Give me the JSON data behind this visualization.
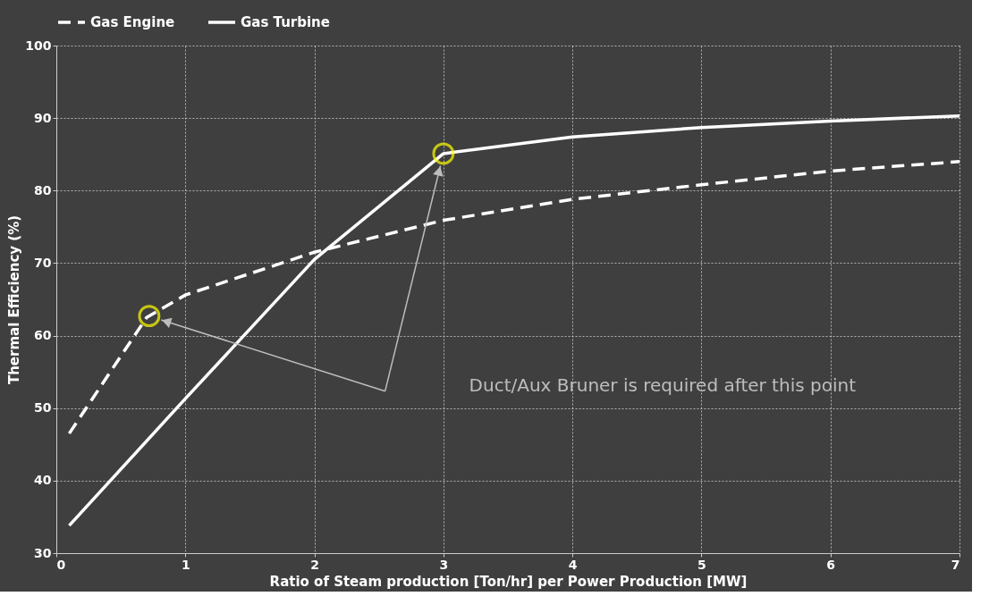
{
  "chart_data": {
    "type": "line",
    "xlabel": "Ratio of Steam production [Ton/hr] per Power Production [MW]",
    "ylabel": "Thermal Efficiency (%)",
    "xlim": [
      0,
      7
    ],
    "xticks": [
      0,
      1,
      2,
      3,
      4,
      5,
      6,
      7
    ],
    "ylim": [
      30,
      100
    ],
    "yticks": [
      30,
      40,
      50,
      60,
      70,
      80,
      90,
      100
    ],
    "grid": true,
    "legend": "top",
    "series": [
      {
        "name": "Gas Engine",
        "color": "#ffffff",
        "line_style": "dashed",
        "x": [
          0.1,
          0.7,
          1,
          2,
          3,
          4,
          5,
          6,
          7
        ],
        "values": [
          46.5,
          62.5,
          65.6,
          71.5,
          75.9,
          78.8,
          80.8,
          82.7,
          84
        ]
      },
      {
        "name": "Gas Turbine",
        "color": "#ffffff",
        "line_style": "solid",
        "x": [
          0.1,
          1,
          2,
          3,
          4,
          5,
          6,
          7
        ],
        "values": [
          33.8,
          51.3,
          70.5,
          85.1,
          87.4,
          88.7,
          89.6,
          90.3
        ]
      },
      {
        "type": "scatter",
        "color": "#ffff00",
        "marker": "circle",
        "x": [
          0.72,
          3
        ],
        "values": [
          62.7,
          85.1
        ]
      }
    ],
    "annotations": [
      "Duct/Aux Bruner is required after this point"
    ]
  }
}
